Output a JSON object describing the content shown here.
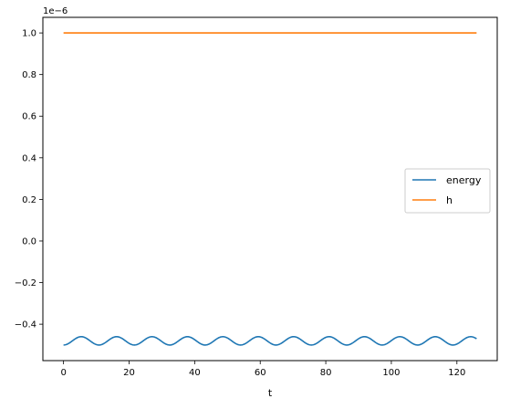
{
  "chart_data": {
    "type": "line",
    "title": "",
    "xlabel": "t",
    "ylabel": "",
    "offset_label": "1e−6",
    "xlim": [
      -6.3,
      132.3
    ],
    "ylim": [
      -0.575,
      1.075
    ],
    "xticks": [
      0,
      20,
      40,
      60,
      80,
      100,
      120
    ],
    "xtick_labels": [
      "0",
      "20",
      "40",
      "60",
      "80",
      "100",
      "120"
    ],
    "yticks": [
      -0.4,
      -0.2,
      0.0,
      0.2,
      0.4,
      0.6,
      0.8,
      1.0
    ],
    "ytick_labels": [
      "−0.4",
      "−0.2",
      "0.0",
      "0.2",
      "0.4",
      "0.6",
      "0.8",
      "1.0"
    ],
    "grid": false,
    "legend_position": "center-right",
    "series": [
      {
        "name": "energy",
        "color": "#1f77b4",
        "x_start": 0,
        "x_end": 126,
        "baseline": -0.48,
        "amplitude": 0.02,
        "period": 10.8,
        "phase_start": "minimum"
      },
      {
        "name": "h",
        "color": "#ff7f0e",
        "x_start": 0,
        "x_end": 126,
        "value": 1.0
      }
    ]
  }
}
